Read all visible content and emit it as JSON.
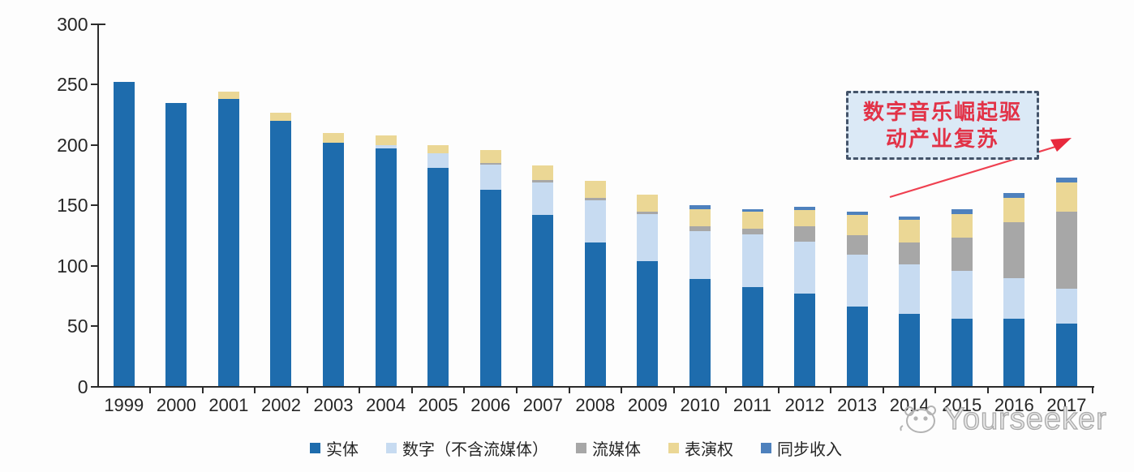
{
  "chart_data": {
    "type": "bar",
    "variant": "stacked",
    "title": "",
    "xlabel": "",
    "ylabel": "",
    "categories": [
      "1999",
      "2000",
      "2001",
      "2002",
      "2003",
      "2004",
      "2005",
      "2006",
      "2007",
      "2008",
      "2009",
      "2010",
      "2011",
      "2012",
      "2013",
      "2014",
      "2015",
      "2016",
      "2017"
    ],
    "series": [
      {
        "name": "实体",
        "color": "#1e6cad",
        "values": [
          252,
          235,
          238,
          220,
          202,
          197,
          181,
          163,
          142,
          119,
          104,
          89,
          82,
          77,
          66,
          60,
          56,
          56,
          52
        ]
      },
      {
        "name": "数字（不含流媒体）",
        "color": "#c7dbf1",
        "values": [
          0,
          0,
          0,
          0,
          0,
          3,
          12,
          21,
          27,
          35,
          39,
          40,
          44,
          43,
          43,
          41,
          40,
          34,
          29
        ]
      },
      {
        "name": "流媒体",
        "color": "#a7a7a7",
        "values": [
          0,
          0,
          0,
          0,
          0,
          0,
          0,
          1,
          2,
          2,
          2,
          4,
          5,
          13,
          16,
          18,
          27,
          46,
          64
        ]
      },
      {
        "name": "表演权",
        "color": "#ebd795",
        "values": [
          0,
          0,
          6,
          7,
          8,
          8,
          7,
          11,
          12,
          14,
          14,
          14,
          14,
          13,
          17,
          19,
          20,
          20,
          24
        ]
      },
      {
        "name": "同步收入",
        "color": "#4e81bd",
        "values": [
          0,
          0,
          0,
          0,
          0,
          0,
          0,
          0,
          0,
          0,
          0,
          3,
          2,
          3,
          3,
          3,
          4,
          4,
          4
        ]
      }
    ],
    "ylim": [
      0,
      300
    ],
    "yticks": [
      0,
      50,
      100,
      150,
      200,
      250,
      300
    ],
    "grid": false,
    "legend_position": "bottom"
  },
  "annotation": {
    "line1": "数字音乐崛起驱",
    "line2": "动产业复苏",
    "text_color": "#e23247",
    "box_fill": "#dbe9f6",
    "box_border": "#44546a",
    "arrow_color": "#ef4050"
  },
  "watermark": {
    "text": "Yourseeker",
    "icon": "mascot-face-icon",
    "color": "#a9a9a9"
  }
}
